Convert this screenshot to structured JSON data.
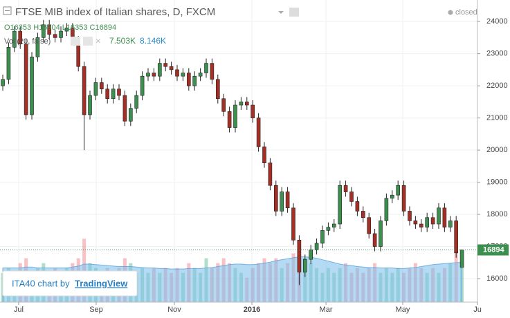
{
  "chart_data": {
    "type": "candlestick",
    "title": "FTSE MIB index of Italian shares, D, FXCM",
    "status": "closed",
    "ohlc_legend": "O16353 H16904 L16353 C16894",
    "volume_legend": {
      "label": "Vol (20, false)",
      "value": "7.503K",
      "ma": "8.146K"
    },
    "watermark": {
      "prefix": "ITA40 chart by",
      "brand": "TradingView"
    },
    "series": [
      {
        "up_color": "#3d8f50",
        "down_color": "#a32f25",
        "open": [
          22000,
          22200,
          23200,
          23700,
          23300,
          21100,
          22900,
          23500,
          23900,
          23600,
          23500,
          23700,
          23800,
          23400,
          22600,
          21100,
          21700,
          22100,
          21900,
          21600,
          21900,
          21700,
          20900,
          21300,
          21700,
          22300,
          22400,
          22300,
          22700,
          22600,
          22500,
          22300,
          22400,
          22000,
          22300,
          22400,
          22700,
          22200,
          21600,
          21200,
          20700,
          21400,
          21500,
          21400,
          21000,
          20100,
          19600,
          18900,
          18100,
          18700,
          18200,
          17200,
          16200,
          16600,
          16900,
          17100,
          17500,
          17600,
          17700,
          18900,
          18700,
          18400,
          18100,
          17900,
          17400,
          17000,
          17800,
          18500,
          18600,
          18900,
          18100,
          17800,
          17700,
          17600,
          17900,
          17700,
          18200,
          17600,
          17800,
          16353
        ],
        "high": [
          22350,
          23350,
          23850,
          23850,
          23450,
          23050,
          23650,
          24050,
          24050,
          23750,
          23850,
          23950,
          23950,
          23550,
          22750,
          21850,
          22250,
          22250,
          22050,
          22050,
          22050,
          21850,
          21450,
          21850,
          22450,
          22550,
          22550,
          22850,
          22850,
          22750,
          22650,
          22550,
          22550,
          22450,
          22550,
          22850,
          22850,
          22350,
          21750,
          21350,
          21550,
          21650,
          21650,
          21550,
          21150,
          20250,
          19750,
          19050,
          18850,
          18850,
          18350,
          17350,
          16750,
          17050,
          17250,
          17650,
          17750,
          17850,
          19050,
          19050,
          18850,
          18550,
          18250,
          18050,
          17550,
          17950,
          18650,
          18750,
          19050,
          19050,
          18250,
          17950,
          17850,
          18050,
          18050,
          18350,
          18350,
          17950,
          17950,
          16904
        ],
        "low": [
          21850,
          22050,
          23050,
          23150,
          20950,
          20950,
          22750,
          23350,
          23450,
          23350,
          23350,
          23550,
          23250,
          22450,
          20000,
          20950,
          21550,
          21750,
          21450,
          21450,
          21550,
          20750,
          20750,
          21150,
          21550,
          22150,
          22150,
          22150,
          22450,
          22350,
          22150,
          22150,
          21850,
          21850,
          22150,
          22250,
          22050,
          21450,
          21050,
          20550,
          20550,
          21250,
          21250,
          20850,
          19950,
          19450,
          18750,
          17950,
          17950,
          18050,
          17050,
          15800,
          16050,
          16450,
          16750,
          16950,
          17350,
          17450,
          17550,
          18550,
          18250,
          17950,
          17750,
          17250,
          16850,
          16850,
          17650,
          18350,
          18450,
          17950,
          17650,
          17550,
          17450,
          17450,
          17550,
          17550,
          17450,
          17450,
          16650,
          16353
        ],
        "close": [
          22200,
          23200,
          23700,
          23300,
          21100,
          22900,
          23500,
          23900,
          23600,
          23500,
          23700,
          23800,
          23400,
          22600,
          21100,
          21700,
          22100,
          21900,
          21600,
          21900,
          21700,
          20900,
          21300,
          21700,
          22300,
          22400,
          22300,
          22700,
          22600,
          22500,
          22300,
          22400,
          22000,
          22300,
          22400,
          22700,
          22200,
          21600,
          21200,
          20700,
          21400,
          21500,
          21400,
          21000,
          20100,
          19600,
          18900,
          18100,
          18700,
          18200,
          17200,
          16200,
          16600,
          16900,
          17100,
          17500,
          17600,
          17700,
          18900,
          18700,
          18400,
          18100,
          17900,
          17400,
          17000,
          17800,
          18500,
          18600,
          18900,
          18100,
          17800,
          17700,
          17600,
          17900,
          17700,
          18200,
          17600,
          17800,
          16800,
          16894
        ]
      }
    ],
    "volume": {
      "ylim": [
        0,
        62
      ],
      "up_color": "rgba(83,185,135,0.45)",
      "down_color": "rgba(235,77,92,0.35)",
      "ma_color": "rgba(120,190,235,0.55)",
      "values": [
        6,
        7,
        5,
        8,
        9,
        6,
        7,
        8,
        6,
        7,
        6,
        7,
        8,
        9,
        13,
        8,
        7,
        6,
        7,
        6,
        7,
        9,
        8,
        6,
        7,
        6,
        7,
        6,
        7,
        6,
        7,
        6,
        8,
        7,
        6,
        9,
        7,
        8,
        9,
        8,
        7,
        6,
        5,
        7,
        8,
        9,
        8,
        9,
        7,
        8,
        10,
        11,
        9,
        8,
        7,
        6,
        7,
        6,
        7,
        8,
        6,
        7,
        6,
        7,
        8,
        6,
        7,
        6,
        7,
        6,
        7,
        8,
        7,
        6,
        7,
        6,
        7,
        8,
        12,
        7.503
      ],
      "ma": [
        7,
        7,
        7,
        7,
        7.2,
        7.2,
        7,
        7,
        7,
        7,
        7,
        7,
        7.2,
        7.4,
        7.8,
        7.8,
        7.7,
        7.6,
        7.5,
        7.4,
        7.3,
        7.3,
        7.3,
        7.2,
        7.1,
        7,
        7,
        6.9,
        6.9,
        6.8,
        6.8,
        6.8,
        6.9,
        6.9,
        6.9,
        7,
        7.1,
        7.3,
        7.5,
        7.7,
        7.8,
        7.8,
        7.7,
        7.7,
        7.8,
        8,
        8.2,
        8.5,
        8.7,
        8.9,
        9.1,
        9.3,
        9.3,
        9.2,
        9,
        8.7,
        8.4,
        8.1,
        7.8,
        7.6,
        7.5,
        7.3,
        7.2,
        7.1,
        7.1,
        7,
        7,
        7,
        6.9,
        6.9,
        7,
        7.1,
        7.3,
        7.5,
        7.7,
        7.8,
        7.9,
        8,
        8.1,
        8.146
      ]
    },
    "ylim": [
      15270,
      24670
    ],
    "yticks": [
      16000,
      17000,
      18000,
      19000,
      20000,
      21000,
      22000,
      23000,
      24000
    ],
    "xlim": [
      -0.48,
      81.67
    ],
    "xticks": [
      {
        "value": 2.73,
        "label": "Jul"
      },
      {
        "value": 16.07,
        "label": "Sep"
      },
      {
        "value": 29.52,
        "label": "Nov"
      },
      {
        "value": 42.86,
        "label": "2016"
      },
      {
        "value": 55.6,
        "label": "Mar"
      },
      {
        "value": 68.81,
        "label": "May"
      },
      {
        "value": 81.67,
        "label": "Ju"
      }
    ],
    "grid": true,
    "last_price_line": true
  }
}
